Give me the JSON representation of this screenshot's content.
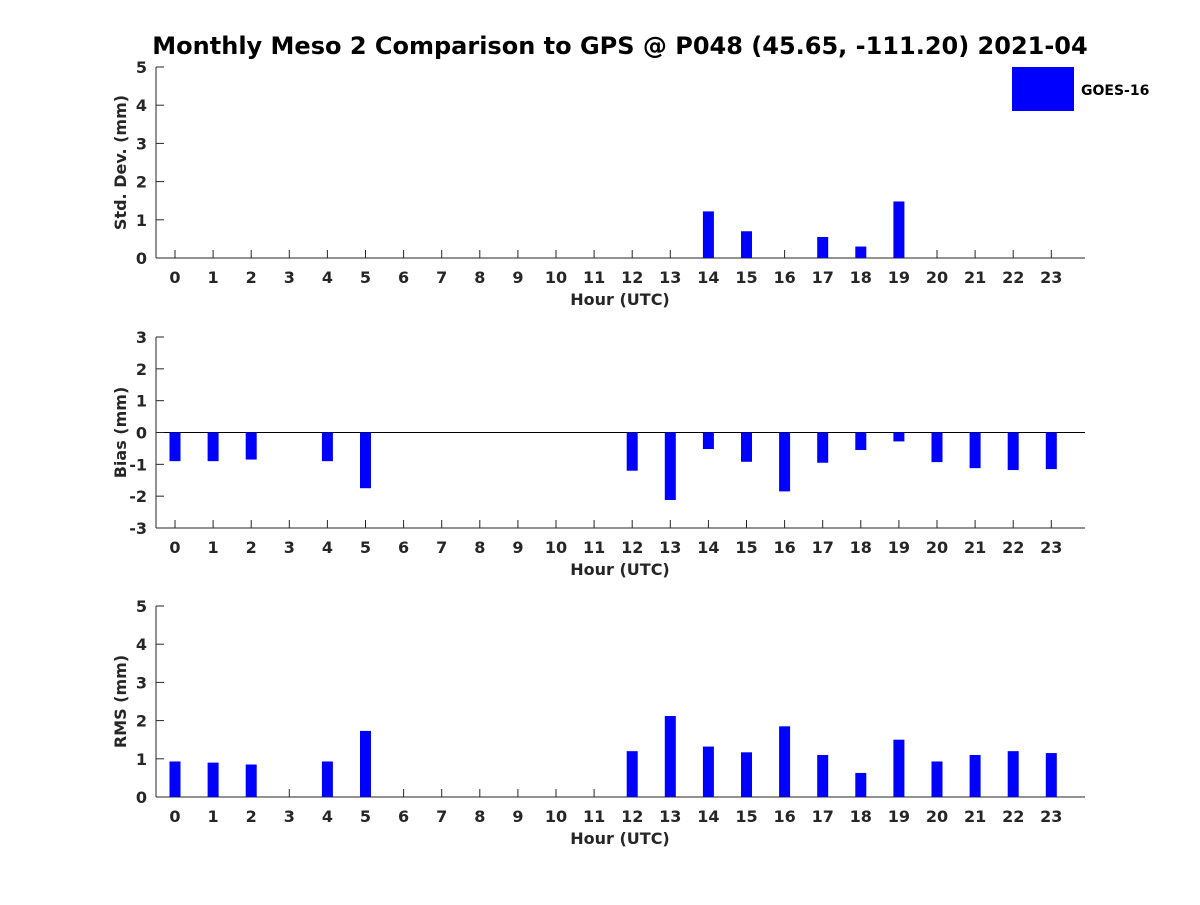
{
  "title": "Monthly Meso 2 Comparison to GPS @ P048 (45.65, -111.20) 2021-04",
  "legend": {
    "label": "GOES-16",
    "color": "#0000ff"
  },
  "chart_data": [
    {
      "type": "bar",
      "ylabel": "Std. Dev. (mm)",
      "xlabel": "Hour (UTC)",
      "ylim": [
        0,
        5
      ],
      "yticks": [
        0,
        1,
        2,
        3,
        4,
        5
      ],
      "zero_line": false,
      "categories": [
        "0",
        "1",
        "2",
        "3",
        "4",
        "5",
        "6",
        "7",
        "8",
        "9",
        "10",
        "11",
        "12",
        "13",
        "14",
        "15",
        "16",
        "17",
        "18",
        "19",
        "20",
        "21",
        "22",
        "23"
      ],
      "series": [
        {
          "name": "GOES-16",
          "color": "#0000ff",
          "values": [
            0,
            0,
            0,
            null,
            0,
            0,
            null,
            null,
            null,
            null,
            null,
            null,
            0,
            0,
            1.22,
            0.7,
            0,
            0.55,
            0.3,
            1.48,
            0,
            0,
            0,
            0
          ]
        }
      ]
    },
    {
      "type": "bar",
      "ylabel": "Bias (mm)",
      "xlabel": "Hour (UTC)",
      "ylim": [
        -3,
        3
      ],
      "yticks": [
        -3,
        -2,
        -1,
        0,
        1,
        2,
        3
      ],
      "zero_line": true,
      "categories": [
        "0",
        "1",
        "2",
        "3",
        "4",
        "5",
        "6",
        "7",
        "8",
        "9",
        "10",
        "11",
        "12",
        "13",
        "14",
        "15",
        "16",
        "17",
        "18",
        "19",
        "20",
        "21",
        "22",
        "23"
      ],
      "series": [
        {
          "name": "GOES-16",
          "color": "#0000ff",
          "values": [
            -0.9,
            -0.9,
            -0.85,
            null,
            -0.9,
            -1.75,
            null,
            null,
            null,
            null,
            null,
            null,
            -1.2,
            -2.12,
            -0.52,
            -0.92,
            -1.85,
            -0.95,
            -0.55,
            -0.28,
            -0.93,
            -1.12,
            -1.18,
            -1.15
          ]
        }
      ]
    },
    {
      "type": "bar",
      "ylabel": "RMS (mm)",
      "xlabel": "Hour (UTC)",
      "ylim": [
        0,
        5
      ],
      "yticks": [
        0,
        1,
        2,
        3,
        4,
        5
      ],
      "zero_line": false,
      "categories": [
        "0",
        "1",
        "2",
        "3",
        "4",
        "5",
        "6",
        "7",
        "8",
        "9",
        "10",
        "11",
        "12",
        "13",
        "14",
        "15",
        "16",
        "17",
        "18",
        "19",
        "20",
        "21",
        "22",
        "23"
      ],
      "series": [
        {
          "name": "GOES-16",
          "color": "#0000ff",
          "values": [
            0.93,
            0.9,
            0.85,
            null,
            0.93,
            1.73,
            null,
            null,
            null,
            null,
            null,
            null,
            1.2,
            2.12,
            1.32,
            1.17,
            1.85,
            1.1,
            0.63,
            1.5,
            0.93,
            1.1,
            1.2,
            1.15
          ]
        }
      ]
    }
  ]
}
